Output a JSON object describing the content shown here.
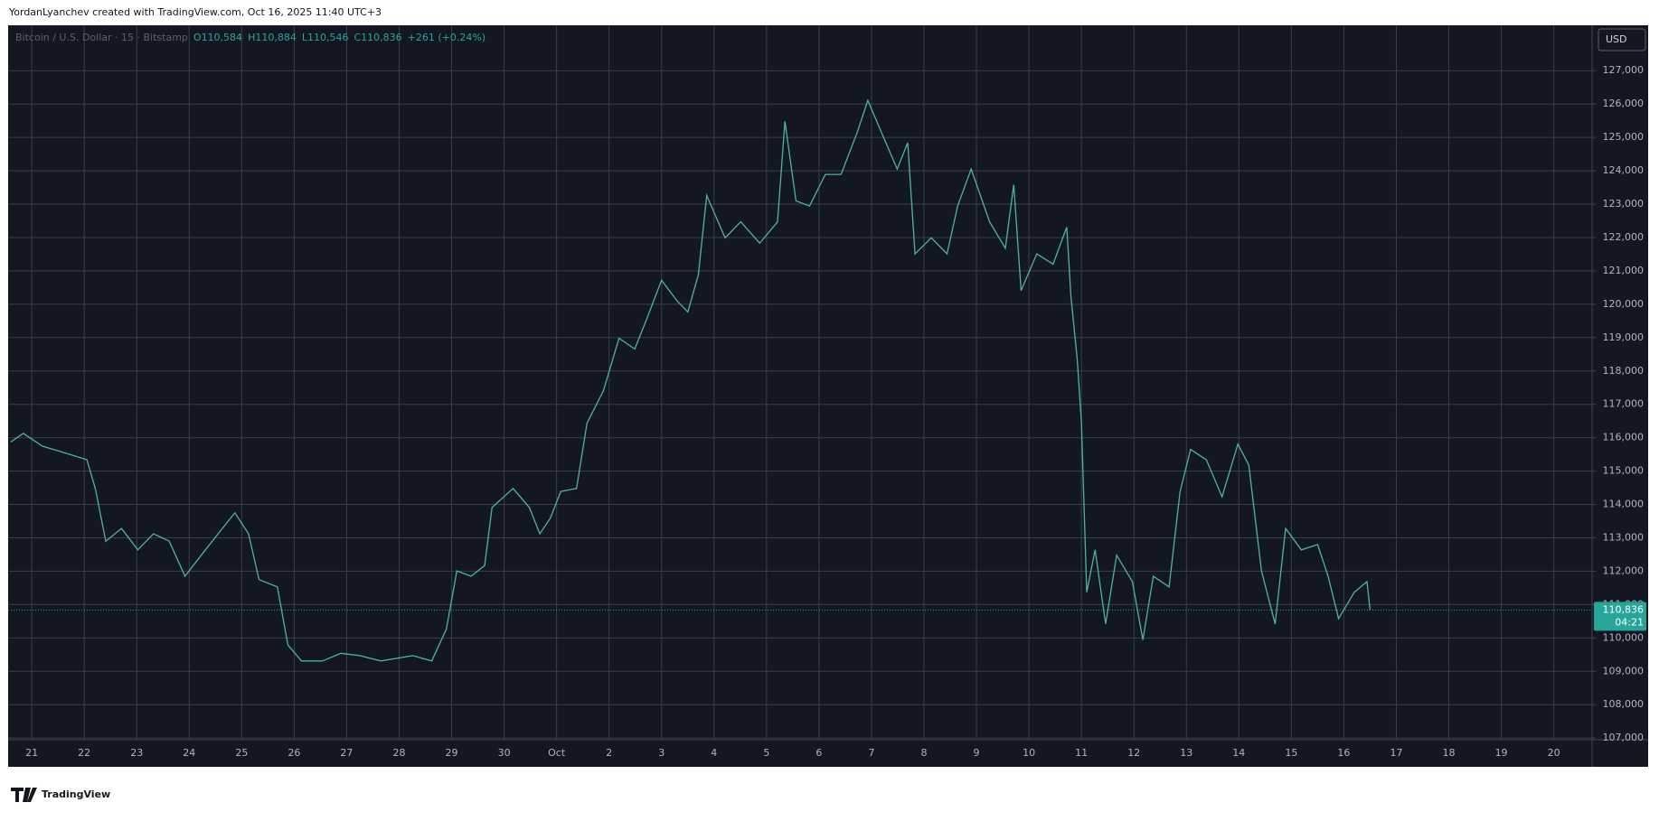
{
  "header": {
    "credit": "YordanLyanchev created with TradingView.com, Oct 16, 2025 11:40 UTC+3"
  },
  "footer": {
    "brand": "TradingView"
  },
  "chart_data": {
    "type": "line",
    "symbol": "Bitcoin / U.S. Dollar · 15 · Bitstamp",
    "ohlc": {
      "open": "O110,584",
      "high": "H110,884",
      "low": "L110,546",
      "close": "C110,836",
      "change": "+261 (+0.24%)"
    },
    "currency": "USD",
    "last_price": {
      "value": 110836,
      "label": "110,836"
    },
    "countdown": "04:21",
    "x": [
      -0.4,
      -0.16,
      0.2,
      0.6,
      1.05,
      1.21,
      1.41,
      1.71,
      2.02,
      2.32,
      2.62,
      2.92,
      3.23,
      3.63,
      3.87,
      4.13,
      4.33,
      4.68,
      4.88,
      5.14,
      5.54,
      5.89,
      6.25,
      6.65,
      7.26,
      7.62,
      7.9,
      8.1,
      8.37,
      8.63,
      8.77,
      9.17,
      9.48,
      9.68,
      9.88,
      10.08,
      10.38,
      10.58,
      10.89,
      11.19,
      11.49,
      11.73,
      12.0,
      12.3,
      12.5,
      12.7,
      12.86,
      13.21,
      13.51,
      13.87,
      14.21,
      14.35,
      14.56,
      14.82,
      15.12,
      15.42,
      15.73,
      15.93,
      16.23,
      16.49,
      16.69,
      16.83,
      17.14,
      17.44,
      17.64,
      17.9,
      18.25,
      18.55,
      18.71,
      18.85,
      19.15,
      19.46,
      19.72,
      19.8,
      19.92,
      20.0,
      20.1,
      20.26,
      20.46,
      20.67,
      20.97,
      21.17,
      21.37,
      21.67,
      21.88,
      22.08,
      22.38,
      22.68,
      22.98,
      23.19,
      23.43,
      23.69,
      23.89,
      24.19,
      24.5,
      24.7,
      24.9,
      25.2,
      25.44,
      25.5
    ],
    "series": [
      {
        "name": "BTCUSD",
        "color": "#4fb3a4",
        "values": [
          115875,
          116130,
          115750,
          115560,
          115340,
          114480,
          112900,
          113280,
          112640,
          113120,
          112900,
          111850,
          112480,
          113280,
          113750,
          113120,
          111750,
          111530,
          109790,
          109310,
          109310,
          109540,
          109470,
          109310,
          109470,
          109310,
          110260,
          112010,
          111850,
          112170,
          113910,
          114480,
          113910,
          113120,
          113590,
          114390,
          114480,
          116440,
          117400,
          118980,
          118660,
          119610,
          120720,
          120090,
          119770,
          120880,
          123260,
          121990,
          122470,
          121830,
          122470,
          125480,
          123100,
          122940,
          123890,
          123890,
          125160,
          126110,
          125000,
          124050,
          124840,
          121510,
          121990,
          121510,
          122940,
          124050,
          122470,
          121680,
          123580,
          120410,
          121510,
          121200,
          122310,
          120250,
          118350,
          116440,
          111370,
          112640,
          110420,
          112480,
          111690,
          109940,
          111850,
          111530,
          114390,
          115650,
          115340,
          114230,
          115810,
          115180,
          112010,
          110420,
          113280,
          112640,
          112800,
          111850,
          110580,
          111370,
          111690,
          110836
        ]
      }
    ],
    "xlim": [
      -0.45,
      29.73
    ],
    "ylim": [
      106950,
      128360
    ],
    "xticks": [
      {
        "value": 0,
        "label": "21"
      },
      {
        "value": 1,
        "label": "22"
      },
      {
        "value": 2,
        "label": "23"
      },
      {
        "value": 3,
        "label": "24"
      },
      {
        "value": 4,
        "label": "25"
      },
      {
        "value": 5,
        "label": "26"
      },
      {
        "value": 6,
        "label": "27"
      },
      {
        "value": 7,
        "label": "28"
      },
      {
        "value": 8,
        "label": "29"
      },
      {
        "value": 9,
        "label": "30"
      },
      {
        "value": 10,
        "label": "Oct"
      },
      {
        "value": 11,
        "label": "2"
      },
      {
        "value": 12,
        "label": "3"
      },
      {
        "value": 13,
        "label": "4"
      },
      {
        "value": 14,
        "label": "5"
      },
      {
        "value": 15,
        "label": "6"
      },
      {
        "value": 16,
        "label": "7"
      },
      {
        "value": 17,
        "label": "8"
      },
      {
        "value": 18,
        "label": "9"
      },
      {
        "value": 19,
        "label": "10"
      },
      {
        "value": 20,
        "label": "11"
      },
      {
        "value": 21,
        "label": "12"
      },
      {
        "value": 22,
        "label": "13"
      },
      {
        "value": 23,
        "label": "14"
      },
      {
        "value": 24,
        "label": "15"
      },
      {
        "value": 25,
        "label": "16"
      },
      {
        "value": 26,
        "label": "17"
      },
      {
        "value": 27,
        "label": "18"
      },
      {
        "value": 28,
        "label": "19"
      },
      {
        "value": 29,
        "label": "20"
      }
    ],
    "yticks": [
      {
        "value": 107000,
        "label": "107,000"
      },
      {
        "value": 108000,
        "label": "108,000"
      },
      {
        "value": 109000,
        "label": "109,000"
      },
      {
        "value": 110000,
        "label": "110,000"
      },
      {
        "value": 111000,
        "label": "111,000"
      },
      {
        "value": 112000,
        "label": "112,000"
      },
      {
        "value": 113000,
        "label": "113,000"
      },
      {
        "value": 114000,
        "label": "114,000"
      },
      {
        "value": 115000,
        "label": "115,000"
      },
      {
        "value": 116000,
        "label": "116,000"
      },
      {
        "value": 117000,
        "label": "117,000"
      },
      {
        "value": 118000,
        "label": "118,000"
      },
      {
        "value": 119000,
        "label": "119,000"
      },
      {
        "value": 120000,
        "label": "120,000"
      },
      {
        "value": 121000,
        "label": "121,000"
      },
      {
        "value": 122000,
        "label": "122,000"
      },
      {
        "value": 123000,
        "label": "123,000"
      },
      {
        "value": 124000,
        "label": "124,000"
      },
      {
        "value": 125000,
        "label": "125,000"
      },
      {
        "value": 126000,
        "label": "126,000"
      },
      {
        "value": 127000,
        "label": "127,000"
      }
    ],
    "grid": true
  }
}
